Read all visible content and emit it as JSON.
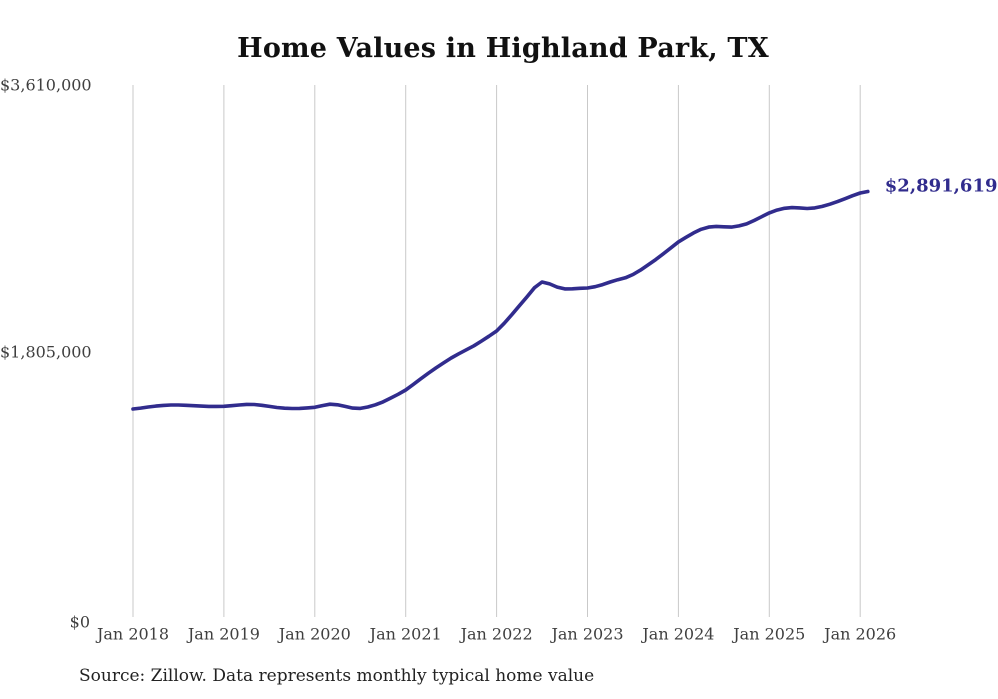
{
  "colors": {
    "line": "#312c8d",
    "end_label": "#312c8d",
    "grid": "#c9c9c9",
    "axis_text": "#3f3f3f",
    "title_text": "#111111",
    "source_text": "#222222",
    "background": "#ffffff"
  },
  "chart_data": {
    "type": "line",
    "title": "Home Values in Highland Park, TX",
    "source_note": "Source: Zillow. Data represents monthly typical home value",
    "current_value_label": "$2,891,619",
    "current_value": 2891619,
    "x_interval": "monthly",
    "x_start": "2018-01",
    "x_end": "2026-02",
    "x_tick_labels": [
      "Jan 2018",
      "Jan 2019",
      "Jan 2020",
      "Jan 2021",
      "Jan 2022",
      "Jan 2023",
      "Jan 2024",
      "Jan 2025",
      "Jan 2026"
    ],
    "y_tick_labels": [
      "$3,610,000",
      "$1,805,000",
      "$0"
    ],
    "y_tick_values": [
      3610000,
      1805000,
      0
    ],
    "ylim": [
      0,
      3610000
    ],
    "grid": "vertical-only",
    "legend_position": "none",
    "series": [
      {
        "name": "Typical home value",
        "values": [
          1424000,
          1430000,
          1437000,
          1443000,
          1448000,
          1451000,
          1451000,
          1449000,
          1446000,
          1443000,
          1441000,
          1441000,
          1442000,
          1446000,
          1451000,
          1455000,
          1454000,
          1449000,
          1441000,
          1434000,
          1429000,
          1427000,
          1428000,
          1431000,
          1435000,
          1447000,
          1456000,
          1452000,
          1441000,
          1430000,
          1428000,
          1437000,
          1452000,
          1472000,
          1497000,
          1523000,
          1552000,
          1590000,
          1628000,
          1665000,
          1701000,
          1735000,
          1768000,
          1796000,
          1823000,
          1850000,
          1882000,
          1915000,
          1950000,
          2002000,
          2060000,
          2120000,
          2180000,
          2242000,
          2281000,
          2268000,
          2246000,
          2234000,
          2235000,
          2238000,
          2240000,
          2249000,
          2263000,
          2281000,
          2296000,
          2309000,
          2331000,
          2361000,
          2396000,
          2432000,
          2471000,
          2511000,
          2551000,
          2582000,
          2612000,
          2636000,
          2651000,
          2656000,
          2653000,
          2651000,
          2659000,
          2673000,
          2696000,
          2721000,
          2747000,
          2766000,
          2778000,
          2783000,
          2781000,
          2777000,
          2781000,
          2791000,
          2806000,
          2823000,
          2843000,
          2863000,
          2881000,
          2891619
        ]
      }
    ]
  }
}
